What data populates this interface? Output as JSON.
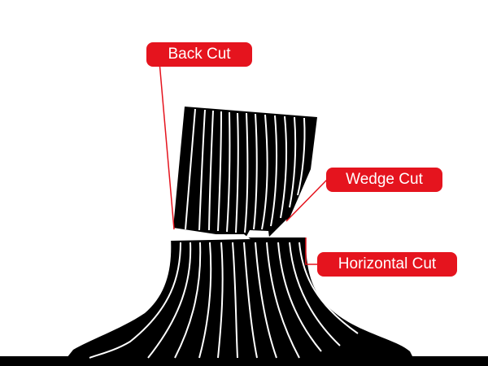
{
  "labels": {
    "back_cut": "Back Cut",
    "wedge_cut": "Wedge Cut",
    "horizontal_cut": "Horizontal Cut"
  },
  "colors": {
    "label_background": "#e5141e",
    "leader_line": "#e5141e",
    "tree": "#000000",
    "wood_grain": "#ffffff"
  }
}
